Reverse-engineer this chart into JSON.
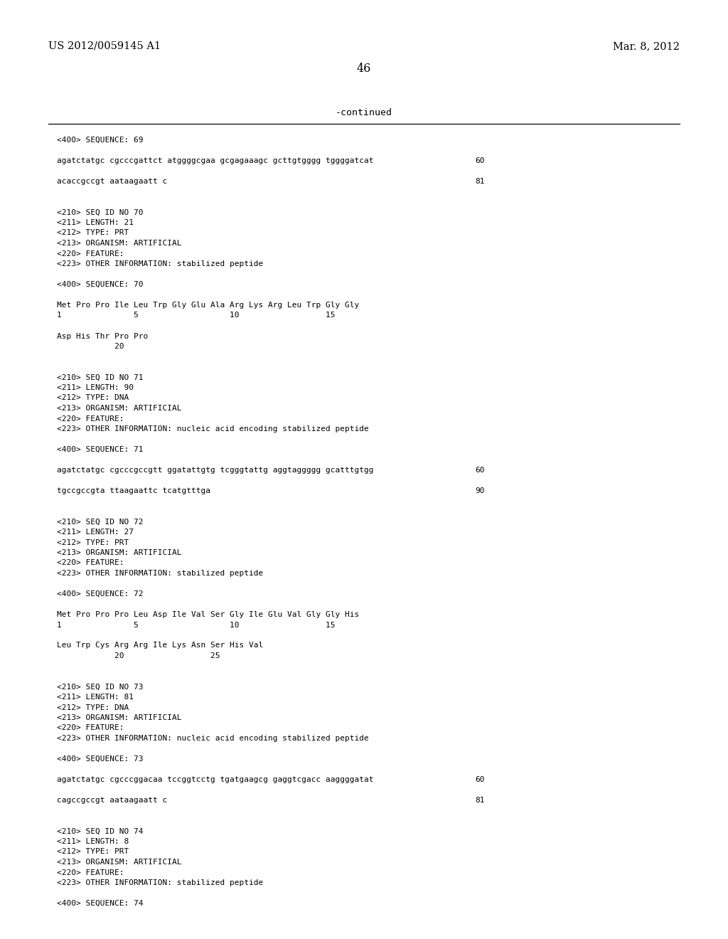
{
  "bg_color": "#ffffff",
  "header_left": "US 2012/0059145 A1",
  "header_right": "Mar. 8, 2012",
  "page_number": "46",
  "continued_text": "-continued",
  "font_mono": "DejaVu Sans Mono",
  "font_serif": "DejaVu Serif",
  "content_lines": [
    {
      "text": "<400> SEQUENCE: 69",
      "num": null
    },
    {
      "text": "",
      "num": null
    },
    {
      "text": "agatctatgc cgcccgattct atggggcgaa gcgagaaagc gcttgtgggg tggggatcat",
      "num": "60"
    },
    {
      "text": "",
      "num": null
    },
    {
      "text": "acaccgccgt aataagaatt c",
      "num": "81"
    },
    {
      "text": "",
      "num": null
    },
    {
      "text": "",
      "num": null
    },
    {
      "text": "<210> SEQ ID NO 70",
      "num": null
    },
    {
      "text": "<211> LENGTH: 21",
      "num": null
    },
    {
      "text": "<212> TYPE: PRT",
      "num": null
    },
    {
      "text": "<213> ORGANISM: ARTIFICIAL",
      "num": null
    },
    {
      "text": "<220> FEATURE:",
      "num": null
    },
    {
      "text": "<223> OTHER INFORMATION: stabilized peptide",
      "num": null
    },
    {
      "text": "",
      "num": null
    },
    {
      "text": "<400> SEQUENCE: 70",
      "num": null
    },
    {
      "text": "",
      "num": null
    },
    {
      "text": "Met Pro Pro Ile Leu Trp Gly Glu Ala Arg Lys Arg Leu Trp Gly Gly",
      "num": null
    },
    {
      "text": "1               5                   10                  15",
      "num": null
    },
    {
      "text": "",
      "num": null
    },
    {
      "text": "Asp His Thr Pro Pro",
      "num": null
    },
    {
      "text": "            20",
      "num": null
    },
    {
      "text": "",
      "num": null
    },
    {
      "text": "",
      "num": null
    },
    {
      "text": "<210> SEQ ID NO 71",
      "num": null
    },
    {
      "text": "<211> LENGTH: 90",
      "num": null
    },
    {
      "text": "<212> TYPE: DNA",
      "num": null
    },
    {
      "text": "<213> ORGANISM: ARTIFICIAL",
      "num": null
    },
    {
      "text": "<220> FEATURE:",
      "num": null
    },
    {
      "text": "<223> OTHER INFORMATION: nucleic acid encoding stabilized peptide",
      "num": null
    },
    {
      "text": "",
      "num": null
    },
    {
      "text": "<400> SEQUENCE: 71",
      "num": null
    },
    {
      "text": "",
      "num": null
    },
    {
      "text": "agatctatgc cgcccgccgtt ggatattgtg tcgggtattg aggtaggggg gcatttgtgg",
      "num": "60"
    },
    {
      "text": "",
      "num": null
    },
    {
      "text": "tgccgccgta ttaagaattc tcatgtttga",
      "num": "90"
    },
    {
      "text": "",
      "num": null
    },
    {
      "text": "",
      "num": null
    },
    {
      "text": "<210> SEQ ID NO 72",
      "num": null
    },
    {
      "text": "<211> LENGTH: 27",
      "num": null
    },
    {
      "text": "<212> TYPE: PRT",
      "num": null
    },
    {
      "text": "<213> ORGANISM: ARTIFICIAL",
      "num": null
    },
    {
      "text": "<220> FEATURE:",
      "num": null
    },
    {
      "text": "<223> OTHER INFORMATION: stabilized peptide",
      "num": null
    },
    {
      "text": "",
      "num": null
    },
    {
      "text": "<400> SEQUENCE: 72",
      "num": null
    },
    {
      "text": "",
      "num": null
    },
    {
      "text": "Met Pro Pro Pro Leu Asp Ile Val Ser Gly Ile Glu Val Gly Gly His",
      "num": null
    },
    {
      "text": "1               5                   10                  15",
      "num": null
    },
    {
      "text": "",
      "num": null
    },
    {
      "text": "Leu Trp Cys Arg Arg Ile Lys Asn Ser His Val",
      "num": null
    },
    {
      "text": "            20                  25",
      "num": null
    },
    {
      "text": "",
      "num": null
    },
    {
      "text": "",
      "num": null
    },
    {
      "text": "<210> SEQ ID NO 73",
      "num": null
    },
    {
      "text": "<211> LENGTH: 81",
      "num": null
    },
    {
      "text": "<212> TYPE: DNA",
      "num": null
    },
    {
      "text": "<213> ORGANISM: ARTIFICIAL",
      "num": null
    },
    {
      "text": "<220> FEATURE:",
      "num": null
    },
    {
      "text": "<223> OTHER INFORMATION: nucleic acid encoding stabilized peptide",
      "num": null
    },
    {
      "text": "",
      "num": null
    },
    {
      "text": "<400> SEQUENCE: 73",
      "num": null
    },
    {
      "text": "",
      "num": null
    },
    {
      "text": "agatctatgc cgcccggacaa tccggtcctg tgatgaagcg gaggtcgacc aaggggatat",
      "num": "60"
    },
    {
      "text": "",
      "num": null
    },
    {
      "text": "cagccgccgt aataagaatt c",
      "num": "81"
    },
    {
      "text": "",
      "num": null
    },
    {
      "text": "",
      "num": null
    },
    {
      "text": "<210> SEQ ID NO 74",
      "num": null
    },
    {
      "text": "<211> LENGTH: 8",
      "num": null
    },
    {
      "text": "<212> TYPE: PRT",
      "num": null
    },
    {
      "text": "<213> ORGANISM: ARTIFICIAL",
      "num": null
    },
    {
      "text": "<220> FEATURE:",
      "num": null
    },
    {
      "text": "<223> OTHER INFORMATION: stabilized peptide",
      "num": null
    },
    {
      "text": "",
      "num": null
    },
    {
      "text": "<400> SEQUENCE: 74",
      "num": null
    }
  ]
}
